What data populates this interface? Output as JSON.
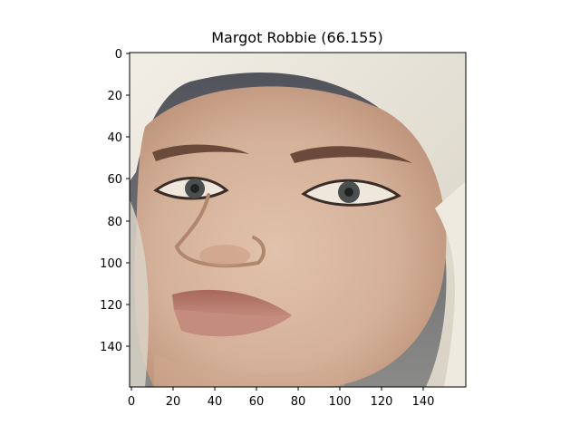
{
  "figure": {
    "title": "Margot Robbie (66.155)"
  },
  "axes": {
    "x_ticks": [
      "0",
      "20",
      "40",
      "60",
      "80",
      "100",
      "120",
      "140"
    ],
    "y_ticks": [
      "0",
      "20",
      "40",
      "60",
      "80",
      "100",
      "120",
      "140"
    ],
    "x_limit": [
      0,
      160
    ],
    "y_limit": [
      160,
      0
    ]
  },
  "image": {
    "description_tag": "face-photo",
    "colors": {
      "background_left": "#5a5a60",
      "hair": "#e8e3d8",
      "skin": "#d9b7a0",
      "skin_shadow": "#c79a80",
      "lips": "#b77b6e",
      "brow": "#6a4a3a",
      "eye": "#4a5050"
    }
  }
}
